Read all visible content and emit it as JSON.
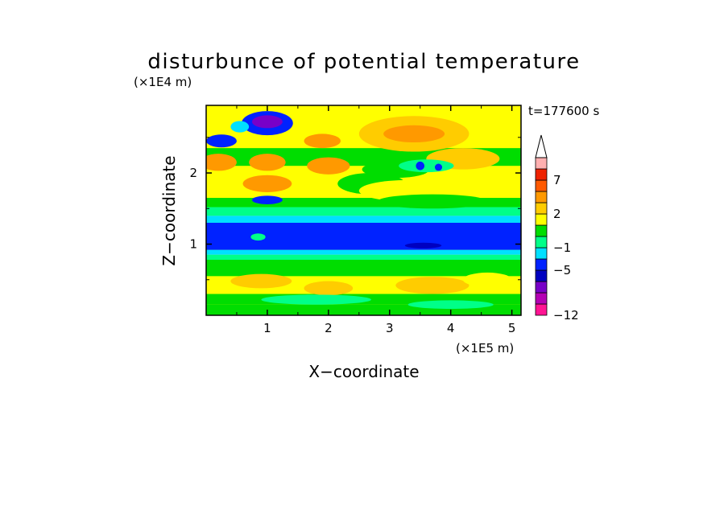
{
  "chart_data": {
    "type": "heatmap",
    "title": "disturbunce of potential temperature",
    "xlabel": "X−coordinate",
    "ylabel": "Z−coordinate",
    "x_unit": "(×1E5 m)",
    "y_unit": "(×1E4 m)",
    "time_label": "t=177600 s",
    "xlim": [
      0,
      5.15
    ],
    "ylim": [
      0,
      2.95
    ],
    "x_ticks": [
      1,
      2,
      3,
      4,
      5
    ],
    "y_ticks": [
      1,
      2
    ],
    "colorbar": {
      "levels": [
        -12,
        -10,
        -8,
        -6,
        -5,
        -3,
        -1,
        0,
        1,
        2,
        3,
        5,
        7,
        8,
        9
      ],
      "labeled_levels": [
        {
          "value": 7,
          "label": "7"
        },
        {
          "value": 2,
          "label": "2"
        },
        {
          "value": -1,
          "label": "−1"
        },
        {
          "value": -5,
          "label": "−5"
        },
        {
          "value": -12,
          "label": "−12"
        }
      ],
      "colors": [
        "#ff1493",
        "#b400b4",
        "#7800c8",
        "#0000c0",
        "#0022ff",
        "#00e0ff",
        "#00ff88",
        "#00dd00",
        "#ffff00",
        "#ffcc00",
        "#ff9900",
        "#ff5a00",
        "#ee2200",
        "#ffb0b0"
      ],
      "extend": "max"
    },
    "bands": [
      {
        "z": [
          0.0,
          0.15
        ],
        "value": 0.5
      },
      {
        "z": [
          0.15,
          0.3
        ],
        "value": 0.2
      },
      {
        "z": [
          0.3,
          0.55
        ],
        "value": 1.4
      },
      {
        "z": [
          0.55,
          0.78
        ],
        "value": 0.5
      },
      {
        "z": [
          0.78,
          0.85
        ],
        "value": -0.5
      },
      {
        "z": [
          0.85,
          0.92
        ],
        "value": -2
      },
      {
        "z": [
          0.92,
          1.3
        ],
        "value": -4
      },
      {
        "z": [
          1.3,
          1.4
        ],
        "value": -2
      },
      {
        "z": [
          1.4,
          1.52
        ],
        "value": -0.5
      },
      {
        "z": [
          1.52,
          1.65
        ],
        "value": 0.5
      },
      {
        "z": [
          1.65,
          2.1
        ],
        "value": 1.5
      },
      {
        "z": [
          2.1,
          2.35
        ],
        "value": 0.6
      },
      {
        "z": [
          2.35,
          2.95
        ],
        "value": 1.2
      }
    ],
    "features": [
      {
        "x": 1.0,
        "z": 2.7,
        "rx": 0.42,
        "rz": 0.17,
        "value": -4
      },
      {
        "x": 1.0,
        "z": 2.72,
        "rx": 0.25,
        "rz": 0.09,
        "value": -7
      },
      {
        "x": 0.25,
        "z": 2.45,
        "rx": 0.25,
        "rz": 0.09,
        "value": -4
      },
      {
        "x": 0.55,
        "z": 2.65,
        "rx": 0.15,
        "rz": 0.08,
        "value": -2
      },
      {
        "x": 0.2,
        "z": 2.15,
        "rx": 0.3,
        "rz": 0.12,
        "value": 3.5
      },
      {
        "x": 1.0,
        "z": 1.85,
        "rx": 0.4,
        "rz": 0.12,
        "value": 3.5
      },
      {
        "x": 1.0,
        "z": 2.15,
        "rx": 0.3,
        "rz": 0.12,
        "value": 3.5
      },
      {
        "x": 1.0,
        "z": 1.62,
        "rx": 0.25,
        "rz": 0.06,
        "value": -3.5
      },
      {
        "x": 2.0,
        "z": 2.1,
        "rx": 0.35,
        "rz": 0.12,
        "value": 3.5
      },
      {
        "x": 1.9,
        "z": 2.45,
        "rx": 0.3,
        "rz": 0.1,
        "value": 3.5
      },
      {
        "x": 3.4,
        "z": 2.55,
        "rx": 0.9,
        "rz": 0.25,
        "value": 2.5
      },
      {
        "x": 3.4,
        "z": 2.55,
        "rx": 0.5,
        "rz": 0.12,
        "value": 3.5
      },
      {
        "x": 4.2,
        "z": 2.2,
        "rx": 0.6,
        "rz": 0.15,
        "value": 2.5
      },
      {
        "x": 3.1,
        "z": 2.05,
        "rx": 0.55,
        "rz": 0.12,
        "value": 0.3
      },
      {
        "x": 3.6,
        "z": 2.1,
        "rx": 0.45,
        "rz": 0.09,
        "value": -0.5
      },
      {
        "x": 3.5,
        "z": 2.1,
        "rx": 0.07,
        "rz": 0.06,
        "value": -4
      },
      {
        "x": 3.8,
        "z": 2.08,
        "rx": 0.06,
        "rz": 0.05,
        "value": -4
      },
      {
        "x": 2.7,
        "z": 1.85,
        "rx": 0.55,
        "rz": 0.15,
        "value": 0.4
      },
      {
        "x": 3.3,
        "z": 1.75,
        "rx": 0.8,
        "rz": 0.15,
        "value": 1.3
      },
      {
        "x": 3.7,
        "z": 1.6,
        "rx": 0.9,
        "rz": 0.1,
        "value": 0.2
      },
      {
        "x": 0.85,
        "z": 1.1,
        "rx": 0.12,
        "rz": 0.05,
        "value": -1
      },
      {
        "x": 3.55,
        "z": 0.98,
        "rx": 0.3,
        "rz": 0.04,
        "value": -6
      },
      {
        "x": 0.9,
        "z": 0.48,
        "rx": 0.5,
        "rz": 0.1,
        "value": 2.5
      },
      {
        "x": 2.0,
        "z": 0.38,
        "rx": 0.4,
        "rz": 0.1,
        "value": 2.5
      },
      {
        "x": 3.7,
        "z": 0.42,
        "rx": 0.6,
        "rz": 0.12,
        "value": 2.5
      },
      {
        "x": 4.6,
        "z": 0.5,
        "rx": 0.4,
        "rz": 0.1,
        "value": 1.5
      },
      {
        "x": 1.8,
        "z": 0.22,
        "rx": 0.9,
        "rz": 0.07,
        "value": -0.5
      },
      {
        "x": 4.0,
        "z": 0.15,
        "rx": 0.7,
        "rz": 0.06,
        "value": -0.5
      },
      {
        "x": 0.7,
        "z": 0.08,
        "rx": 0.6,
        "rz": 0.05,
        "value": 0.2
      }
    ]
  }
}
